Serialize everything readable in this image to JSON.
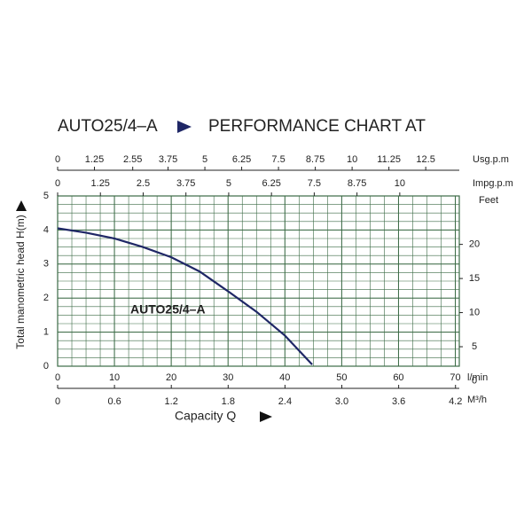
{
  "chart_data": {
    "type": "line",
    "title": "AUTO25/4–A",
    "subtitle": "PERFORMANCE CHART AT",
    "xlabel": "Capacity Q",
    "ylabel": "Total manometric head H(m)",
    "x_unit": "l/min",
    "x": [
      0,
      5,
      10,
      15,
      20,
      25,
      30,
      35,
      40,
      44.8
    ],
    "series": [
      {
        "name": "AUTO25/4–A",
        "color": "#1f2766",
        "values": [
          4.05,
          3.92,
          3.75,
          3.5,
          3.2,
          2.78,
          2.2,
          1.6,
          0.9,
          0.05
        ]
      }
    ],
    "xlim": [
      0,
      70.7
    ],
    "xticks": [
      0,
      10,
      20,
      30,
      40,
      50,
      60,
      70
    ],
    "ylim": [
      0,
      5
    ],
    "yticks": [
      0,
      1,
      2,
      3,
      4,
      5
    ],
    "grid": true,
    "grid_color": "#3b6a45",
    "minor_grid": {
      "x": 2.5,
      "y": 0.25
    },
    "top_axes": [
      {
        "label": "Usg.p.m",
        "lim": [
          0,
          13.64
        ],
        "ticks": [
          0,
          1.25,
          2.55,
          3.75,
          5,
          6.25,
          7.5,
          8.75,
          10,
          11.25,
          12.5
        ]
      },
      {
        "label": "Impg.p.m",
        "lim": [
          0,
          11.74
        ],
        "ticks": [
          0,
          1.25,
          2.5,
          3.75,
          5,
          6.25,
          7.5,
          8.75,
          10
        ]
      }
    ],
    "bottom_axis2": {
      "label": "M³/h",
      "lim": [
        0,
        4.24
      ],
      "ticks": [
        0,
        0.6,
        1.2,
        1.8,
        2.4,
        3.0,
        3.6,
        4.2
      ],
      "tick_labels": [
        "0",
        "0.6",
        "1.2",
        "1.8",
        "2.4",
        "3.0",
        "3.6",
        "4.2"
      ]
    },
    "right_axis": {
      "label": "Feet",
      "lim": [
        0,
        27.1
      ],
      "ticks": [
        0,
        5,
        10,
        15,
        20
      ]
    }
  }
}
